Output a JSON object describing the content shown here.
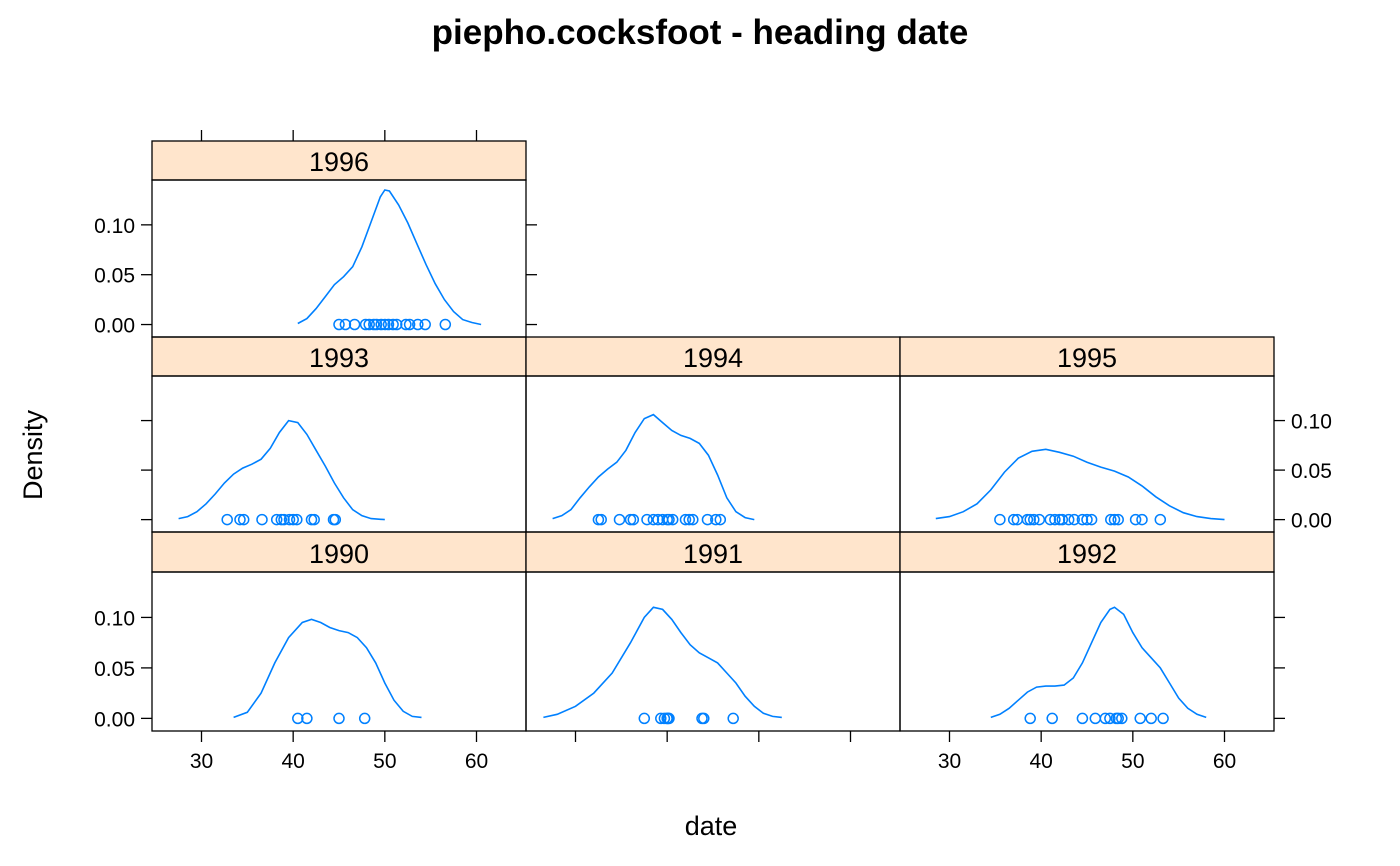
{
  "chart_data": {
    "type": "density",
    "title": "piepho.cocksfoot - heading date",
    "xlabel": "date",
    "ylabel": "Density",
    "xlim": [
      24.6,
      65.4
    ],
    "ylim": [
      -0.0125,
      0.145
    ],
    "x_ticks": [
      30,
      40,
      50,
      60
    ],
    "y_ticks": [
      0.0,
      0.05,
      0.1
    ],
    "x_tick_labels": [
      "30",
      "40",
      "50",
      "60"
    ],
    "y_tick_labels": [
      "0.00",
      "0.05",
      "0.10"
    ],
    "series_color": "#0080ff",
    "strip_color": "#ffe5cc",
    "layout": "3 columns x 3 rows (bottom to top)",
    "panels": [
      {
        "label": "1990",
        "points": [
          40.5,
          41.5,
          45,
          47.8
        ],
        "curve": [
          [
            33.5,
            0.001
          ],
          [
            35,
            0.006
          ],
          [
            36.5,
            0.025
          ],
          [
            38,
            0.055
          ],
          [
            39.5,
            0.08
          ],
          [
            41,
            0.095
          ],
          [
            42,
            0.098
          ],
          [
            43,
            0.095
          ],
          [
            44,
            0.09
          ],
          [
            45,
            0.087
          ],
          [
            46,
            0.085
          ],
          [
            47,
            0.08
          ],
          [
            48,
            0.07
          ],
          [
            49,
            0.055
          ],
          [
            50,
            0.035
          ],
          [
            51,
            0.018
          ],
          [
            52,
            0.007
          ],
          [
            53,
            0.002
          ],
          [
            54,
            0.001
          ]
        ]
      },
      {
        "label": "1991",
        "points": [
          37.5,
          39.3,
          39.7,
          40.0,
          40.0,
          40.1,
          40.2,
          43.8,
          44.0,
          47.2
        ],
        "curve": [
          [
            26.5,
            0.001
          ],
          [
            28,
            0.004
          ],
          [
            30,
            0.012
          ],
          [
            32,
            0.025
          ],
          [
            34,
            0.045
          ],
          [
            36,
            0.075
          ],
          [
            37.5,
            0.1
          ],
          [
            38.5,
            0.11
          ],
          [
            39.5,
            0.108
          ],
          [
            40.5,
            0.098
          ],
          [
            41.5,
            0.085
          ],
          [
            42.5,
            0.073
          ],
          [
            43.5,
            0.065
          ],
          [
            44.5,
            0.06
          ],
          [
            45.5,
            0.055
          ],
          [
            46.5,
            0.045
          ],
          [
            47.5,
            0.035
          ],
          [
            48.5,
            0.022
          ],
          [
            49.5,
            0.012
          ],
          [
            50.5,
            0.005
          ],
          [
            51.5,
            0.002
          ],
          [
            52.5,
            0.001
          ]
        ]
      },
      {
        "label": "1992",
        "points": [
          38.8,
          41.2,
          44.5,
          45.9,
          47.0,
          47.5,
          48.2,
          48.4,
          48.8,
          50.8,
          52.0,
          53.3
        ],
        "curve": [
          [
            34.5,
            0.001
          ],
          [
            35.5,
            0.004
          ],
          [
            36.5,
            0.01
          ],
          [
            37.5,
            0.018
          ],
          [
            38.5,
            0.026
          ],
          [
            39.5,
            0.031
          ],
          [
            40.5,
            0.032
          ],
          [
            41.5,
            0.032
          ],
          [
            42.5,
            0.033
          ],
          [
            43.5,
            0.04
          ],
          [
            44.5,
            0.055
          ],
          [
            45.5,
            0.075
          ],
          [
            46.5,
            0.095
          ],
          [
            47.5,
            0.108
          ],
          [
            48,
            0.11
          ],
          [
            49,
            0.103
          ],
          [
            50,
            0.085
          ],
          [
            51,
            0.07
          ],
          [
            52,
            0.06
          ],
          [
            53,
            0.05
          ],
          [
            54,
            0.035
          ],
          [
            55,
            0.02
          ],
          [
            56,
            0.01
          ],
          [
            57,
            0.004
          ],
          [
            58,
            0.001
          ]
        ]
      },
      {
        "label": "1993",
        "points": [
          32.8,
          34.2,
          34.6,
          36.6,
          38.2,
          38.7,
          39.0,
          39.6,
          40.0,
          40.4,
          42.0,
          42.3,
          44.4,
          44.6
        ],
        "curve": [
          [
            27.5,
            0.001
          ],
          [
            28.5,
            0.003
          ],
          [
            29.5,
            0.008
          ],
          [
            30.5,
            0.016
          ],
          [
            31.5,
            0.026
          ],
          [
            32.5,
            0.037
          ],
          [
            33.5,
            0.046
          ],
          [
            34.5,
            0.052
          ],
          [
            35.5,
            0.056
          ],
          [
            36.5,
            0.061
          ],
          [
            37.5,
            0.072
          ],
          [
            38.5,
            0.088
          ],
          [
            39.5,
            0.1
          ],
          [
            40.5,
            0.098
          ],
          [
            41.5,
            0.086
          ],
          [
            42.5,
            0.07
          ],
          [
            43.5,
            0.054
          ],
          [
            44.5,
            0.037
          ],
          [
            45.5,
            0.022
          ],
          [
            46.5,
            0.01
          ],
          [
            47.5,
            0.004
          ],
          [
            48.5,
            0.001
          ],
          [
            50,
            0.0
          ]
        ]
      },
      {
        "label": "1994",
        "points": [
          32.5,
          32.8,
          34.8,
          36.0,
          36.3,
          37.8,
          38.5,
          39.0,
          39.5,
          40.0,
          40.2,
          40.6,
          42.0,
          42.4,
          42.8,
          44.4,
          45.3,
          45.8
        ],
        "curve": [
          [
            27.5,
            0.001
          ],
          [
            28.5,
            0.004
          ],
          [
            29.5,
            0.01
          ],
          [
            30.5,
            0.022
          ],
          [
            31.5,
            0.033
          ],
          [
            32.5,
            0.043
          ],
          [
            33.5,
            0.051
          ],
          [
            34.5,
            0.058
          ],
          [
            35.5,
            0.07
          ],
          [
            36.5,
            0.088
          ],
          [
            37.5,
            0.102
          ],
          [
            38.5,
            0.106
          ],
          [
            39.5,
            0.098
          ],
          [
            40.5,
            0.09
          ],
          [
            41.5,
            0.085
          ],
          [
            42.5,
            0.082
          ],
          [
            43.5,
            0.077
          ],
          [
            44.5,
            0.065
          ],
          [
            45.5,
            0.045
          ],
          [
            46.5,
            0.022
          ],
          [
            47.5,
            0.008
          ],
          [
            48.5,
            0.002
          ],
          [
            49.5,
            0.0
          ]
        ]
      },
      {
        "label": "1995",
        "points": [
          35.5,
          37.0,
          37.4,
          38.5,
          38.8,
          39.2,
          39.8,
          41.0,
          41.5,
          42.0,
          42.3,
          43.0,
          43.6,
          44.5,
          45.0,
          45.5,
          47.6,
          48.0,
          48.4,
          50.3,
          51.0,
          53.0
        ],
        "curve": [
          [
            28.5,
            0.001
          ],
          [
            30,
            0.003
          ],
          [
            31.5,
            0.008
          ],
          [
            33,
            0.016
          ],
          [
            34.5,
            0.03
          ],
          [
            36,
            0.048
          ],
          [
            37.5,
            0.062
          ],
          [
            39,
            0.069
          ],
          [
            40.5,
            0.071
          ],
          [
            42,
            0.068
          ],
          [
            43.5,
            0.064
          ],
          [
            45,
            0.058
          ],
          [
            46.5,
            0.053
          ],
          [
            48,
            0.049
          ],
          [
            49.5,
            0.043
          ],
          [
            51,
            0.034
          ],
          [
            52.5,
            0.023
          ],
          [
            54,
            0.014
          ],
          [
            55.5,
            0.007
          ],
          [
            57,
            0.003
          ],
          [
            58.5,
            0.001
          ],
          [
            60,
            0.0
          ]
        ]
      },
      {
        "label": "1996",
        "points": [
          45.0,
          45.7,
          46.7,
          47.9,
          48.3,
          48.8,
          49.1,
          49.6,
          50.0,
          50.4,
          50.9,
          51.3,
          52.3,
          52.7,
          53.6,
          54.4,
          56.6
        ],
        "curve": [
          [
            40.5,
            0.001
          ],
          [
            41.5,
            0.006
          ],
          [
            42.5,
            0.016
          ],
          [
            43.5,
            0.028
          ],
          [
            44.5,
            0.04
          ],
          [
            45.5,
            0.048
          ],
          [
            46.5,
            0.058
          ],
          [
            47.5,
            0.078
          ],
          [
            48.5,
            0.103
          ],
          [
            49.5,
            0.128
          ],
          [
            50,
            0.135
          ],
          [
            50.5,
            0.134
          ],
          [
            51.5,
            0.12
          ],
          [
            52.5,
            0.102
          ],
          [
            53.5,
            0.081
          ],
          [
            54.5,
            0.06
          ],
          [
            55.5,
            0.041
          ],
          [
            56.5,
            0.025
          ],
          [
            57.5,
            0.013
          ],
          [
            58.5,
            0.005
          ],
          [
            59.5,
            0.002
          ],
          [
            60.5,
            0.0
          ]
        ]
      }
    ]
  }
}
